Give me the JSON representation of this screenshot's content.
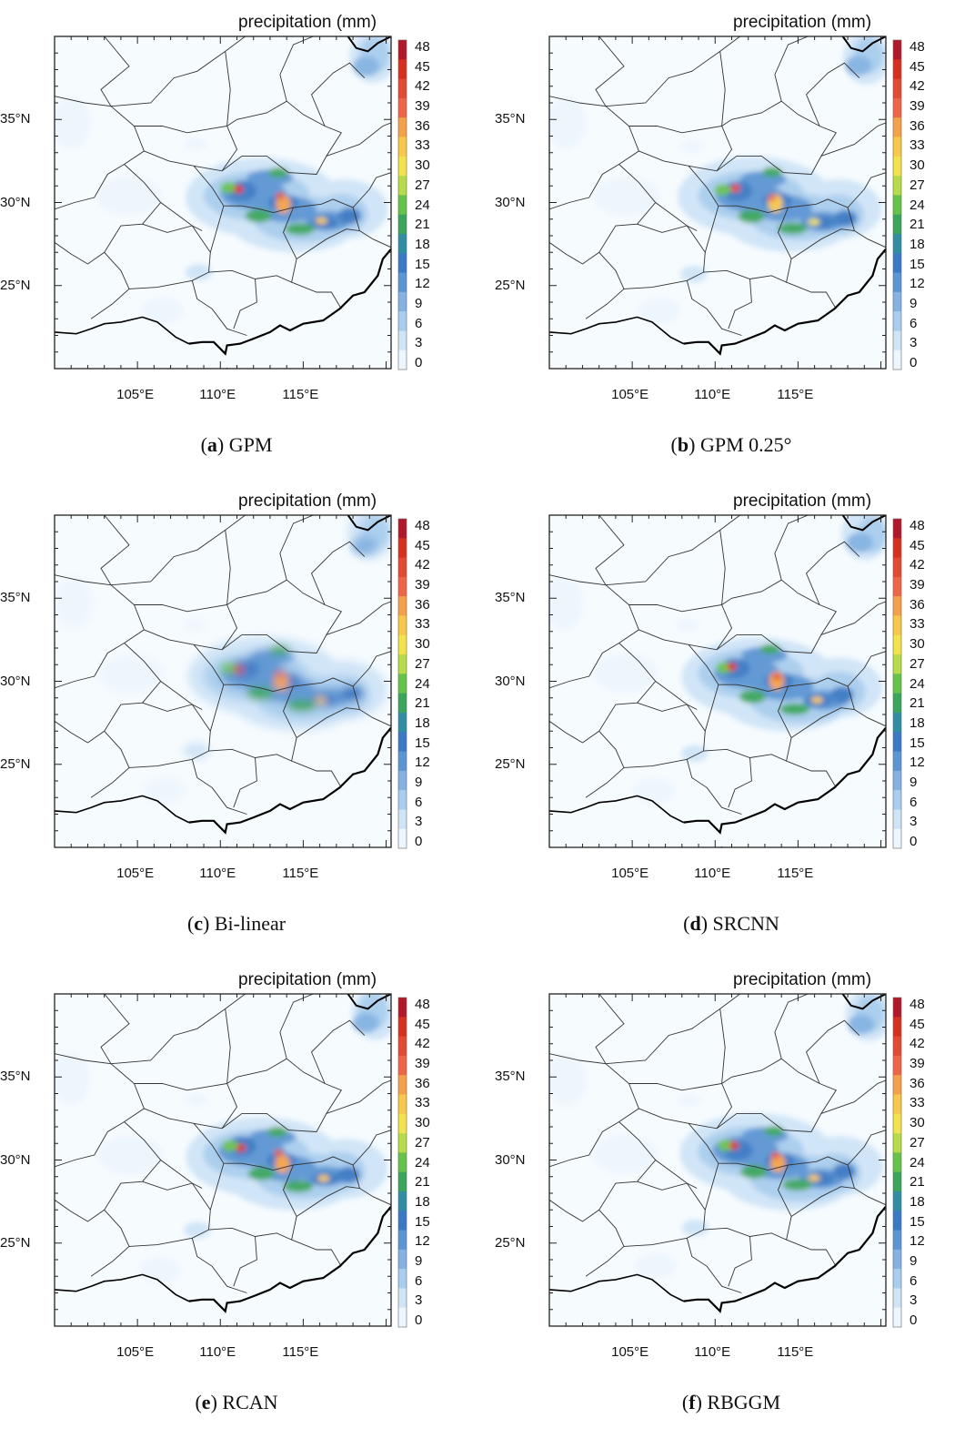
{
  "colorbar": {
    "title": "precipitation (mm)",
    "ticks": [
      "48",
      "45",
      "42",
      "39",
      "36",
      "33",
      "30",
      "27",
      "24",
      "21",
      "18",
      "15",
      "12",
      "9",
      "6",
      "3",
      "0"
    ],
    "colors": [
      "#b2182b",
      "#d7301f",
      "#e34a33",
      "#ef6548",
      "#f4a24a",
      "#f7c84a",
      "#f2e34c",
      "#b8db4a",
      "#66c24a",
      "#3aa55c",
      "#2e8fa3",
      "#3b79c4",
      "#5b95d3",
      "#84b2e2",
      "#a9cdee",
      "#cfe4f7",
      "#eef6fd"
    ]
  },
  "axes": {
    "lat_labels": [
      "35°N",
      "30°N",
      "25°N"
    ],
    "lon_labels": [
      "105°E",
      "110°E",
      "115°E"
    ]
  },
  "panels": [
    {
      "letter": "a",
      "name": "GPM"
    },
    {
      "letter": "b",
      "name": "GPM 0.25°"
    },
    {
      "letter": "c",
      "name": "Bi-linear"
    },
    {
      "letter": "d",
      "name": "SRCNN"
    },
    {
      "letter": "e",
      "name": "RCAN"
    },
    {
      "letter": "f",
      "name": "RBGGM"
    }
  ],
  "style": {
    "ocean": "#f6fbfe",
    "boundary": "#333333",
    "coast": "#000000"
  }
}
